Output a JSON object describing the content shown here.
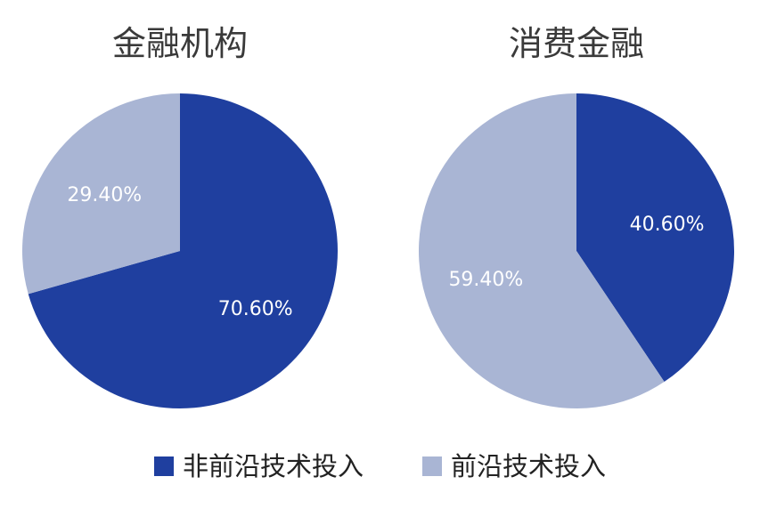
{
  "chart_data": [
    {
      "type": "pie",
      "title": "金融机构",
      "slices": [
        {
          "name": "非前沿技术投入",
          "value": 70.6,
          "label": "70.60%",
          "color": "#1f3f9f"
        },
        {
          "name": "前沿技术投入",
          "value": 29.4,
          "label": "29.40%",
          "color": "#a9b5d4"
        }
      ]
    },
    {
      "type": "pie",
      "title": "消费金融",
      "slices": [
        {
          "name": "非前沿技术投入",
          "value": 40.6,
          "label": "40.60%",
          "color": "#1f3f9f"
        },
        {
          "name": "前沿技术投入",
          "value": 59.4,
          "label": "59.40%",
          "color": "#a9b5d4"
        }
      ]
    }
  ],
  "legend": [
    {
      "label": "非前沿技术投入",
      "color": "#1f3f9f"
    },
    {
      "label": "前沿技术投入",
      "color": "#a9b5d4"
    }
  ]
}
